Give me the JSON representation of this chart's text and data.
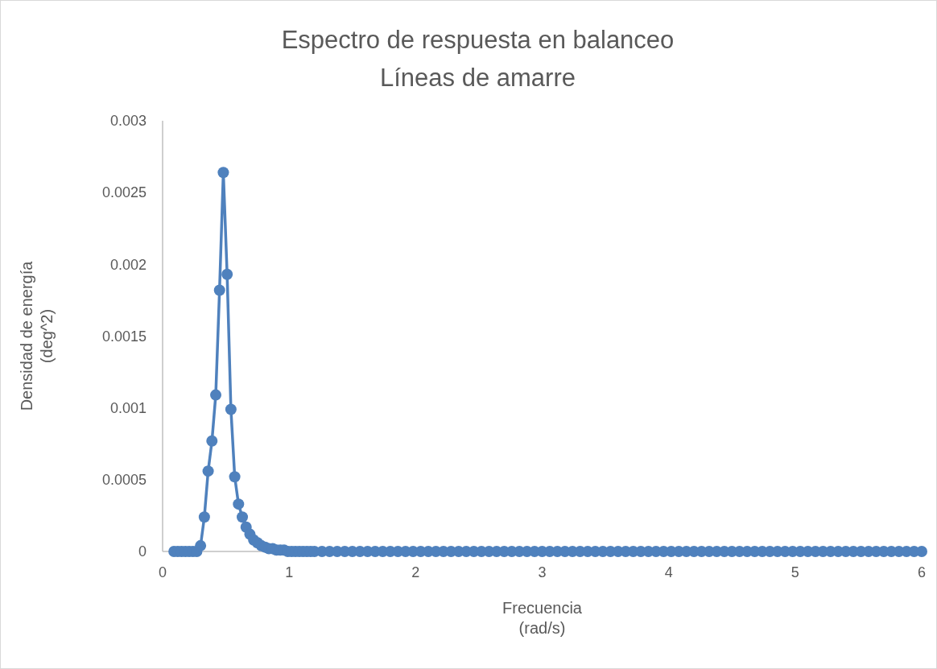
{
  "chart_data": {
    "type": "line",
    "title": "Espectro de respuesta en balanceo",
    "subtitle": "Líneas de amarre",
    "xlabel": "Frecuencia\n(rad/s)",
    "ylabel": "Densidad de energía\n(deg^2)",
    "xlim": [
      0,
      6
    ],
    "xticks": [
      0,
      1,
      2,
      3,
      4,
      5,
      6
    ],
    "ylim": [
      0,
      0.003
    ],
    "yticks": [
      0,
      0.0005,
      0.001,
      0.0015,
      0.002,
      0.0025,
      0.003
    ],
    "grid": false,
    "marker": "circle",
    "line_style": "solid",
    "series": [
      {
        "color": "#4f81bd",
        "x": [
          0.09,
          0.12,
          0.15,
          0.18,
          0.21,
          0.24,
          0.27,
          0.3,
          0.33,
          0.36,
          0.39,
          0.42,
          0.45,
          0.48,
          0.51,
          0.54,
          0.57,
          0.6,
          0.63,
          0.66,
          0.69,
          0.72,
          0.75,
          0.78,
          0.81,
          0.84,
          0.87,
          0.9,
          0.93,
          0.96,
          0.99,
          1.02,
          1.05,
          1.08,
          1.11,
          1.14,
          1.17,
          1.2,
          1.26,
          1.32,
          1.38,
          1.44,
          1.5,
          1.56,
          1.62,
          1.68,
          1.74,
          1.8,
          1.86,
          1.92,
          1.98,
          2.04,
          2.1,
          2.16,
          2.22,
          2.28,
          2.34,
          2.4,
          2.46,
          2.52,
          2.58,
          2.64,
          2.7,
          2.76,
          2.82,
          2.88,
          2.94,
          3.0,
          3.06,
          3.12,
          3.18,
          3.24,
          3.3,
          3.36,
          3.42,
          3.48,
          3.54,
          3.6,
          3.66,
          3.72,
          3.78,
          3.84,
          3.9,
          3.96,
          4.02,
          4.08,
          4.14,
          4.2,
          4.26,
          4.32,
          4.38,
          4.44,
          4.5,
          4.56,
          4.62,
          4.68,
          4.74,
          4.8,
          4.86,
          4.92,
          4.98,
          5.04,
          5.1,
          5.16,
          5.22,
          5.28,
          5.34,
          5.4,
          5.46,
          5.52,
          5.58,
          5.64,
          5.7,
          5.76,
          5.82,
          5.88,
          5.94,
          6.0
        ],
        "values": [
          0,
          0,
          0,
          0,
          0,
          0,
          0,
          4e-05,
          0.00024,
          0.00056,
          0.00077,
          0.00109,
          0.00182,
          0.00264,
          0.00193,
          0.00099,
          0.00052,
          0.00033,
          0.00024,
          0.00017,
          0.00012,
          8e-05,
          6e-05,
          4e-05,
          3e-05,
          2e-05,
          2e-05,
          1e-05,
          1e-05,
          1e-05,
          0,
          0,
          0,
          0,
          0,
          0,
          0,
          0,
          0,
          0,
          0,
          0,
          0,
          0,
          0,
          0,
          0,
          0,
          0,
          0,
          0,
          0,
          0,
          0,
          0,
          0,
          0,
          0,
          0,
          0,
          0,
          0,
          0,
          0,
          0,
          0,
          0,
          0,
          0,
          0,
          0,
          0,
          0,
          0,
          0,
          0,
          0,
          0,
          0,
          0,
          0,
          0,
          0,
          0,
          0,
          0,
          0,
          0,
          0,
          0,
          0,
          0,
          0,
          0,
          0,
          0,
          0,
          0,
          0,
          0,
          0,
          0,
          0,
          0,
          0,
          0,
          0,
          0,
          0,
          0,
          0,
          0,
          0,
          0,
          0,
          0,
          0,
          0
        ]
      }
    ]
  }
}
